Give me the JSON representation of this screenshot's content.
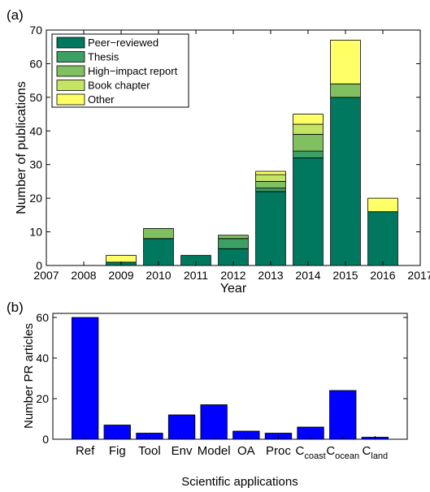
{
  "figure": {
    "panel_a_label": "(a)",
    "panel_b_label": "(b)"
  },
  "chart_data": [
    {
      "type": "bar",
      "stacked": true,
      "panel": "(a)",
      "xlabel": "Year",
      "ylabel": "Number of publications",
      "xlim": [
        2007,
        2017
      ],
      "ylim": [
        0,
        70
      ],
      "xticks": [
        "2007",
        "2008",
        "2009",
        "2010",
        "2011",
        "2012",
        "2013",
        "2014",
        "2015",
        "2016",
        "2017"
      ],
      "yticks": [
        "0",
        "10",
        "20",
        "30",
        "40",
        "50",
        "60",
        "70"
      ],
      "categories": [
        2009,
        2010,
        2011,
        2012,
        2013,
        2014,
        2015,
        2016
      ],
      "legend_position": "top-left",
      "series": [
        {
          "name": "Peer−reviewed",
          "color": "#007860",
          "values": [
            1,
            8,
            3,
            5,
            22,
            32,
            50,
            16
          ]
        },
        {
          "name": "Thesis",
          "color": "#3ca064",
          "values": [
            0,
            0,
            0,
            3,
            1,
            2,
            0,
            0
          ]
        },
        {
          "name": "High−impact report",
          "color": "#80c060",
          "values": [
            0,
            3,
            0,
            1,
            2,
            5,
            4,
            0
          ]
        },
        {
          "name": "Book chapter",
          "color": "#c4e464",
          "values": [
            0,
            0,
            0,
            0,
            2,
            3,
            0,
            0
          ]
        },
        {
          "name": "Other",
          "color": "#ffff66",
          "values": [
            2,
            0,
            0,
            0,
            1,
            3,
            13,
            4
          ]
        }
      ]
    },
    {
      "type": "bar",
      "panel": "(b)",
      "xlabel": "Scientific applications",
      "ylabel": "Number PR articles",
      "ylim": [
        0,
        62
      ],
      "yticks": [
        "0",
        "20",
        "40",
        "60"
      ],
      "categories": [
        {
          "main": "Ref",
          "sub": ""
        },
        {
          "main": "Fig",
          "sub": ""
        },
        {
          "main": "Tool",
          "sub": ""
        },
        {
          "main": "Env",
          "sub": ""
        },
        {
          "main": "Model",
          "sub": ""
        },
        {
          "main": "OA",
          "sub": ""
        },
        {
          "main": "Proc",
          "sub": ""
        },
        {
          "main": "C",
          "sub": "coast"
        },
        {
          "main": "C",
          "sub": "ocean"
        },
        {
          "main": "C",
          "sub": "land"
        }
      ],
      "values": [
        60,
        7,
        3,
        12,
        17,
        4,
        3,
        6,
        24,
        1
      ],
      "color": "#0000ff"
    }
  ]
}
